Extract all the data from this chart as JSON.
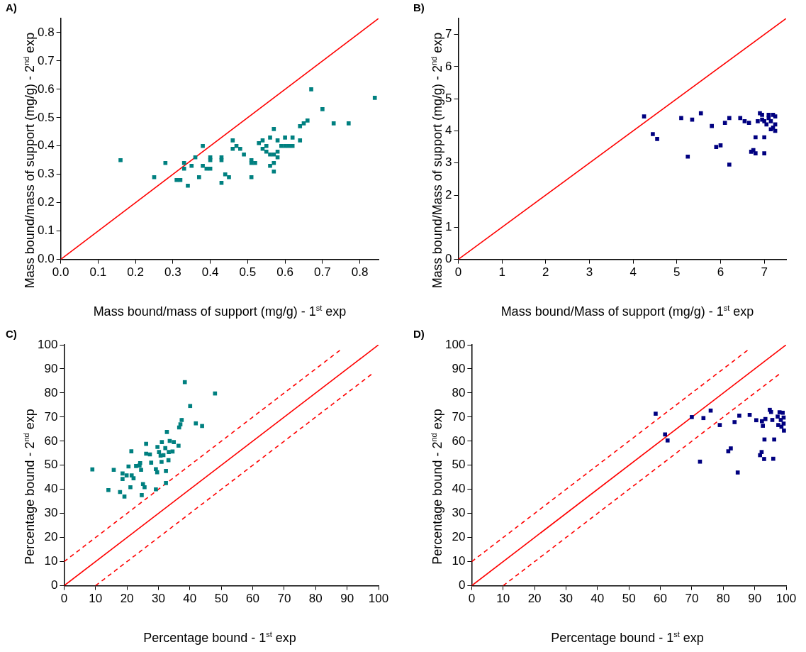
{
  "chart_data": [
    {
      "type": "scatter",
      "title": "A)",
      "xlabel": "Mass bound/mass of support (mg/g) - 1$^{st}$ exp",
      "ylabel": "Mass bound/mass of support (mg/g) - 2$^{nd}$ exp",
      "grid": false,
      "legend": false,
      "xlim": [
        0,
        0.85
      ],
      "ylim": [
        0,
        0.85
      ],
      "xticks": [
        {
          "value": 0,
          "label": "0.0"
        },
        0.1,
        0.2,
        0.3,
        0.4,
        0.5,
        0.6,
        0.7,
        0.8
      ],
      "yticks": [
        {
          "value": 0,
          "label": "0.0"
        },
        0.1,
        0.2,
        0.3,
        0.4,
        0.5,
        0.6,
        0.7,
        0.8
      ],
      "series": [
        {
          "marker": "square",
          "color": "#008080",
          "x": [
            0.16,
            0.25,
            0.28,
            0.31,
            0.32,
            0.33,
            0.33,
            0.34,
            0.35,
            0.36,
            0.37,
            0.38,
            0.38,
            0.39,
            0.4,
            0.4,
            0.4,
            0.43,
            0.43,
            0.43,
            0.44,
            0.45,
            0.46,
            0.46,
            0.47,
            0.48,
            0.49,
            0.51,
            0.51,
            0.51,
            0.52,
            0.53,
            0.54,
            0.54,
            0.55,
            0.55,
            0.56,
            0.56,
            0.57,
            0.57,
            0.57,
            0.57,
            0.58,
            0.58,
            0.59,
            0.6,
            0.6,
            0.61,
            0.62,
            0.62,
            0.64,
            0.64,
            0.65,
            0.66,
            0.67,
            0.7,
            0.73,
            0.77,
            0.84,
            0.58,
            0.56
          ],
          "values": [
            0.35,
            0.29,
            0.34,
            0.28,
            0.28,
            0.34,
            0.32,
            0.26,
            0.33,
            0.36,
            0.29,
            0.4,
            0.33,
            0.32,
            0.32,
            0.35,
            0.36,
            0.27,
            0.35,
            0.36,
            0.3,
            0.29,
            0.39,
            0.42,
            0.4,
            0.39,
            0.37,
            0.29,
            0.35,
            0.34,
            0.34,
            0.41,
            0.42,
            0.39,
            0.4,
            0.38,
            0.43,
            0.37,
            0.31,
            0.34,
            0.37,
            0.46,
            0.38,
            0.42,
            0.4,
            0.43,
            0.4,
            0.4,
            0.4,
            0.43,
            0.42,
            0.47,
            0.48,
            0.49,
            0.6,
            0.53,
            0.48,
            0.48,
            0.57,
            0.36,
            0.33
          ]
        },
        {
          "type": "line",
          "marker": "none",
          "color": "#ff0000",
          "line_style": "solid",
          "x": [
            0,
            0.85
          ],
          "values": [
            0,
            0.85
          ]
        }
      ]
    },
    {
      "type": "scatter",
      "title": "B)",
      "xlabel": "Mass bound/Mass of support (mg/g) - 1$^{st}$ exp",
      "ylabel": "Mass bound/Mass of support (mg/g) - 2$^{nd}$ exp",
      "grid": false,
      "legend": false,
      "xlim": [
        0,
        7.5
      ],
      "ylim": [
        0,
        7.5
      ],
      "xticks": [
        0,
        1,
        2,
        3,
        4,
        5,
        6,
        7
      ],
      "yticks": [
        0,
        1,
        2,
        3,
        4,
        5,
        6,
        7
      ],
      "series": [
        {
          "marker": "square",
          "color": "#000080",
          "x": [
            4.25,
            4.45,
            4.55,
            5.1,
            5.25,
            5.35,
            5.55,
            5.8,
            5.9,
            6.0,
            6.1,
            6.2,
            6.2,
            6.45,
            6.55,
            6.65,
            6.7,
            6.75,
            6.8,
            6.8,
            6.85,
            6.9,
            6.95,
            7.0,
            7.0,
            7.0,
            7.05,
            7.1,
            7.1,
            7.15,
            7.15,
            7.2,
            7.2,
            7.25,
            7.25,
            7.25,
            6.95
          ],
          "values": [
            4.45,
            3.9,
            3.75,
            4.4,
            3.2,
            4.35,
            4.55,
            4.15,
            3.5,
            3.55,
            4.25,
            2.95,
            4.4,
            4.4,
            4.3,
            4.25,
            3.35,
            3.4,
            3.3,
            3.8,
            4.3,
            4.55,
            4.5,
            3.3,
            3.8,
            4.3,
            4.2,
            4.4,
            4.5,
            4.05,
            4.3,
            4.5,
            4.1,
            4.45,
            4.2,
            4.0,
            4.35
          ]
        },
        {
          "type": "line",
          "marker": "none",
          "color": "#ff0000",
          "line_style": "solid",
          "x": [
            0,
            7.5
          ],
          "values": [
            0,
            7.5
          ]
        }
      ]
    },
    {
      "type": "scatter",
      "title": "C)",
      "xlabel": "Percentage bound - 1$^{st}$ exp",
      "ylabel": "Percentage bound - 2$^{nd}$ exp",
      "grid": false,
      "legend": false,
      "xlim": [
        0,
        100
      ],
      "ylim": [
        0,
        100
      ],
      "xticks": [
        0,
        10,
        20,
        30,
        40,
        50,
        60,
        70,
        80,
        90,
        100
      ],
      "yticks": [
        0,
        10,
        20,
        30,
        40,
        50,
        60,
        70,
        80,
        90,
        100
      ],
      "series": [
        {
          "marker": "square",
          "color": "#008080",
          "x": [
            9.0,
            15.8,
            14.1,
            17.8,
            19.2,
            18.6,
            18.6,
            19.9,
            20.5,
            21.1,
            21.5,
            22.1,
            22.9,
            24.0,
            24.2,
            24.5,
            25.1,
            25.6,
            24.7,
            26.1,
            26.1,
            27.3,
            27.7,
            29.2,
            29.6,
            29.2,
            29.7,
            30.2,
            30.7,
            31.1,
            31.0,
            31.6,
            32.2,
            32.4,
            32.4,
            32.7,
            33.2,
            33.3,
            33.6,
            34.5,
            34.9,
            36.4,
            36.6,
            37.0,
            37.4,
            38.4,
            40.1,
            41.9,
            43.9,
            48.0,
            21.4
          ],
          "values": [
            48.3,
            48.1,
            39.7,
            38.9,
            37.0,
            46.6,
            44.3,
            45.8,
            49.5,
            40.9,
            45.8,
            44.6,
            49.7,
            49.9,
            50.9,
            48.1,
            42.2,
            40.9,
            37.6,
            58.9,
            54.8,
            54.5,
            51.1,
            48.4,
            47.1,
            40.0,
            57.6,
            55.5,
            54.0,
            59.6,
            51.4,
            54.2,
            57.1,
            47.6,
            42.6,
            63.8,
            52.1,
            55.5,
            60.1,
            55.7,
            59.6,
            58.1,
            65.7,
            67.0,
            68.8,
            84.5,
            74.6,
            67.4,
            66.3,
            79.8,
            55.8
          ]
        },
        {
          "type": "line",
          "marker": "none",
          "color": "#ff0000",
          "line_style": "solid",
          "x": [
            0,
            100
          ],
          "values": [
            0,
            100
          ]
        },
        {
          "type": "line",
          "marker": "none",
          "color": "#ff0000",
          "line_style": "dashed",
          "x": [
            0,
            88
          ],
          "values": [
            10,
            98
          ]
        },
        {
          "type": "line",
          "marker": "none",
          "color": "#ff0000",
          "line_style": "dashed",
          "x": [
            10,
            98
          ],
          "values": [
            0,
            88
          ]
        }
      ]
    },
    {
      "type": "scatter",
      "title": "D)",
      "xlabel": "Percentage bound - 1$^{st}$ exp",
      "ylabel": "Percentage bound - 2$^{nd}$ exp",
      "grid": false,
      "legend": false,
      "xlim": [
        0,
        100
      ],
      "ylim": [
        0,
        100
      ],
      "xticks": [
        0,
        10,
        20,
        30,
        40,
        50,
        60,
        70,
        80,
        90,
        100
      ],
      "yticks": [
        0,
        10,
        20,
        30,
        40,
        50,
        60,
        70,
        80,
        90,
        100
      ],
      "series": [
        {
          "marker": "square",
          "color": "#000080",
          "x": [
            58.5,
            61.5,
            62.3,
            70.0,
            72.6,
            73.7,
            76.0,
            78.9,
            81.6,
            82.4,
            83.6,
            84.6,
            85.1,
            88.4,
            90.5,
            91.7,
            92.2,
            92.3,
            92.6,
            93.0,
            93.1,
            93.4,
            94.8,
            95.2,
            95.6,
            95.9,
            96.2,
            97.3,
            97.5,
            97.9,
            98.3,
            98.9,
            99.2,
            99.2,
            99.3,
            98.5
          ],
          "values": [
            71.4,
            62.8,
            60.3,
            70.0,
            51.5,
            69.6,
            72.7,
            66.7,
            55.8,
            57.0,
            67.9,
            47.0,
            70.6,
            70.9,
            68.7,
            54.2,
            55.5,
            68.3,
            66.4,
            52.6,
            60.7,
            69.2,
            73.0,
            72.1,
            68.8,
            52.7,
            60.7,
            70.2,
            66.7,
            72.0,
            68.8,
            71.8,
            69.8,
            67.3,
            64.4,
            66.0
          ]
        },
        {
          "type": "line",
          "marker": "none",
          "color": "#ff0000",
          "line_style": "solid",
          "x": [
            0,
            100
          ],
          "values": [
            0,
            100
          ]
        },
        {
          "type": "line",
          "marker": "none",
          "color": "#ff0000",
          "line_style": "dashed",
          "x": [
            0,
            88
          ],
          "values": [
            10,
            98
          ]
        },
        {
          "type": "line",
          "marker": "none",
          "color": "#ff0000",
          "line_style": "dashed",
          "x": [
            10,
            98
          ],
          "values": [
            0,
            88
          ]
        }
      ]
    }
  ]
}
